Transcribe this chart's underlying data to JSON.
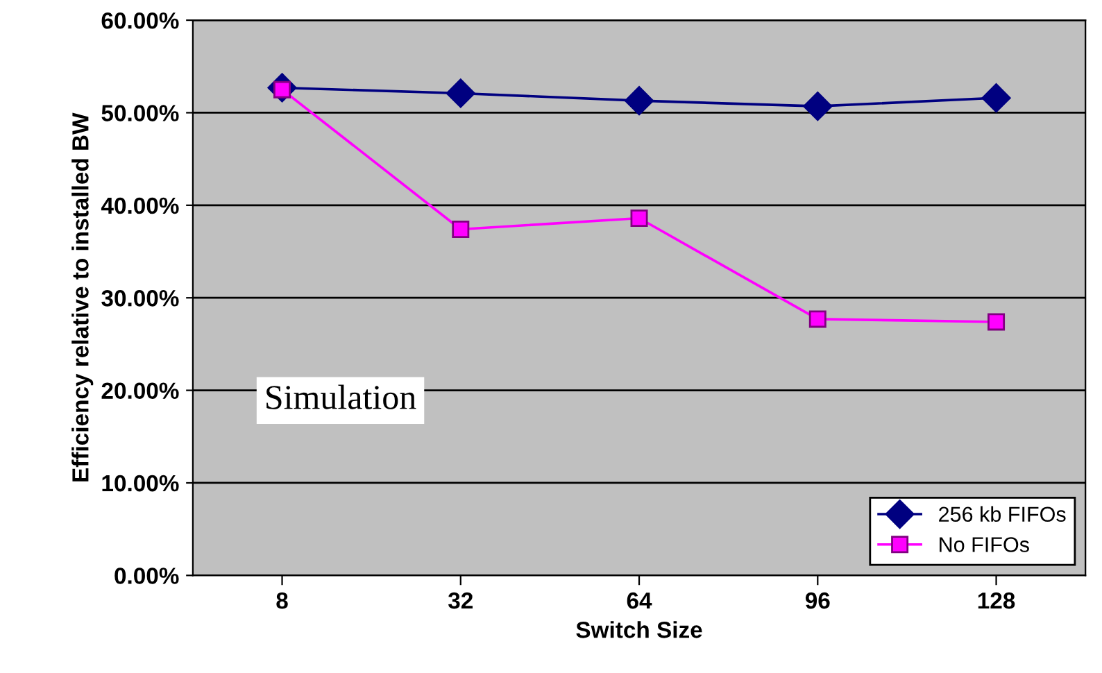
{
  "chart_data": {
    "type": "line",
    "xlabel": "Switch Size",
    "ylabel": "Efficiency relative to installed BW",
    "categories": [
      "8",
      "32",
      "64",
      "96",
      "128"
    ],
    "series": [
      {
        "name": "256 kb FIFOs",
        "color": "#000080",
        "marker": "diamond",
        "values": [
          52.7,
          52.1,
          51.3,
          50.7,
          51.6
        ]
      },
      {
        "name": "No FIFOs",
        "color": "#ff00ff",
        "marker": "square",
        "values": [
          52.5,
          37.4,
          38.6,
          27.7,
          27.4
        ]
      }
    ],
    "ylim": [
      0,
      60
    ],
    "yticks": [
      {
        "value": 0,
        "label": "0.00%"
      },
      {
        "value": 10,
        "label": "10.00%"
      },
      {
        "value": 20,
        "label": "20.00%"
      },
      {
        "value": 30,
        "label": "30.00%"
      },
      {
        "value": 40,
        "label": "40.00%"
      },
      {
        "value": 50,
        "label": "50.00%"
      },
      {
        "value": 60,
        "label": "60.00%"
      }
    ],
    "grid": "y",
    "legend": "bottom right",
    "line_style": "solid",
    "annotations": [
      "Simulation"
    ]
  }
}
